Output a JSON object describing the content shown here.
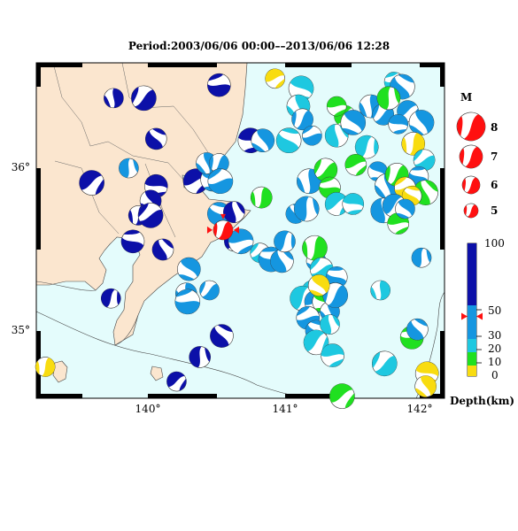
{
  "title": "Period:2003/06/06 00:00––2013/06/06 12:28",
  "axes": {
    "x_ticks": [
      "140°",
      "141°",
      "142°"
    ],
    "y_ticks": [
      "36°",
      "35°"
    ]
  },
  "magnitude_legend": {
    "heading": "M",
    "labels": [
      "8",
      "7",
      "6",
      "5"
    ]
  },
  "depth_legend": {
    "labels": [
      "100",
      "50",
      "30",
      "20",
      "10",
      "0"
    ],
    "caption": "Depth(km)",
    "current_marker_km": 45
  },
  "colors": {
    "land": "#fbe6cf",
    "sea": "#e4fcfc",
    "deep": "#0c10a8",
    "mid": "#1596e0",
    "shallow1": "#1ec8e0",
    "shallow2": "#20e020",
    "surface": "#f8dc10",
    "event": "#ff1010"
  },
  "selected_event": {
    "lon": 140.55,
    "lat": 35.62
  },
  "events": [
    {
      "lon": 139.75,
      "lat": 36.43,
      "d": "deep"
    },
    {
      "lon": 139.97,
      "lat": 36.43,
      "d": "deep"
    },
    {
      "lon": 140.52,
      "lat": 36.51,
      "d": "deep"
    },
    {
      "lon": 140.06,
      "lat": 36.18,
      "d": "deep"
    },
    {
      "lon": 139.86,
      "lat": 36.0,
      "d": "mid"
    },
    {
      "lon": 139.59,
      "lat": 35.91,
      "d": "deep"
    },
    {
      "lon": 140.06,
      "lat": 35.89,
      "d": "deep"
    },
    {
      "lon": 140.02,
      "lat": 35.8,
      "d": "deep"
    },
    {
      "lon": 139.93,
      "lat": 35.71,
      "d": "deep"
    },
    {
      "lon": 140.02,
      "lat": 35.71,
      "d": "deep"
    },
    {
      "lon": 139.89,
      "lat": 35.55,
      "d": "deep"
    },
    {
      "lon": 140.11,
      "lat": 35.5,
      "d": "deep"
    },
    {
      "lon": 139.73,
      "lat": 35.2,
      "d": "deep"
    },
    {
      "lon": 140.35,
      "lat": 35.92,
      "d": "deep"
    },
    {
      "lon": 140.47,
      "lat": 35.93,
      "d": "mid"
    },
    {
      "lon": 140.43,
      "lat": 36.03,
      "d": "mid"
    },
    {
      "lon": 140.52,
      "lat": 36.03,
      "d": "mid"
    },
    {
      "lon": 140.53,
      "lat": 35.92,
      "d": "mid"
    },
    {
      "lon": 140.52,
      "lat": 35.72,
      "d": "mid"
    },
    {
      "lon": 140.63,
      "lat": 35.73,
      "d": "deep"
    },
    {
      "lon": 140.63,
      "lat": 35.55,
      "d": "deep"
    },
    {
      "lon": 140.68,
      "lat": 35.55,
      "d": "mid"
    },
    {
      "lon": 140.3,
      "lat": 35.38,
      "d": "mid"
    },
    {
      "lon": 140.28,
      "lat": 35.23,
      "d": "mid"
    },
    {
      "lon": 140.45,
      "lat": 35.25,
      "d": "mid"
    },
    {
      "lon": 140.29,
      "lat": 35.18,
      "d": "mid"
    },
    {
      "lon": 140.54,
      "lat": 34.97,
      "d": "deep"
    },
    {
      "lon": 140.38,
      "lat": 34.84,
      "d": "deep"
    },
    {
      "lon": 140.21,
      "lat": 34.69,
      "d": "deep"
    },
    {
      "lon": 140.75,
      "lat": 36.17,
      "d": "deep"
    },
    {
      "lon": 140.84,
      "lat": 36.17,
      "d": "mid"
    },
    {
      "lon": 140.83,
      "lat": 35.82,
      "d": "shallow2"
    },
    {
      "lon": 140.82,
      "lat": 35.48,
      "d": "shallow1"
    },
    {
      "lon": 140.9,
      "lat": 35.44,
      "d": "mid"
    },
    {
      "lon": 140.98,
      "lat": 35.43,
      "d": "mid"
    },
    {
      "lon": 141.0,
      "lat": 35.55,
      "d": "mid"
    },
    {
      "lon": 140.93,
      "lat": 36.55,
      "d": "surface"
    },
    {
      "lon": 141.12,
      "lat": 36.49,
      "d": "shallow1"
    },
    {
      "lon": 141.1,
      "lat": 36.38,
      "d": "shallow1"
    },
    {
      "lon": 141.13,
      "lat": 36.3,
      "d": "mid"
    },
    {
      "lon": 141.2,
      "lat": 36.2,
      "d": "mid"
    },
    {
      "lon": 141.03,
      "lat": 36.17,
      "d": "shallow1"
    },
    {
      "lon": 141.38,
      "lat": 36.2,
      "d": "shallow1"
    },
    {
      "lon": 141.44,
      "lat": 36.32,
      "d": "shallow2"
    },
    {
      "lon": 141.38,
      "lat": 36.38,
      "d": "shallow2"
    },
    {
      "lon": 141.5,
      "lat": 36.28,
      "d": "mid"
    },
    {
      "lon": 141.63,
      "lat": 36.38,
      "d": "mid"
    },
    {
      "lon": 141.72,
      "lat": 36.33,
      "d": "mid"
    },
    {
      "lon": 141.8,
      "lat": 36.53,
      "d": "shallow1"
    },
    {
      "lon": 141.86,
      "lat": 36.5,
      "d": "mid"
    },
    {
      "lon": 141.76,
      "lat": 36.43,
      "d": "shallow2"
    },
    {
      "lon": 141.9,
      "lat": 36.35,
      "d": "mid"
    },
    {
      "lon": 141.83,
      "lat": 36.27,
      "d": "mid"
    },
    {
      "lon": 142.0,
      "lat": 36.28,
      "d": "mid"
    },
    {
      "lon": 141.94,
      "lat": 36.15,
      "d": "surface"
    },
    {
      "lon": 142.02,
      "lat": 36.05,
      "d": "shallow1"
    },
    {
      "lon": 141.98,
      "lat": 35.95,
      "d": "mid"
    },
    {
      "lon": 142.03,
      "lat": 35.85,
      "d": "shallow2"
    },
    {
      "lon": 141.6,
      "lat": 36.13,
      "d": "shallow1"
    },
    {
      "lon": 141.52,
      "lat": 36.02,
      "d": "shallow2"
    },
    {
      "lon": 141.68,
      "lat": 35.98,
      "d": "mid"
    },
    {
      "lon": 141.75,
      "lat": 35.89,
      "d": "mid"
    },
    {
      "lon": 141.82,
      "lat": 35.96,
      "d": "shallow2"
    },
    {
      "lon": 141.88,
      "lat": 35.88,
      "d": "surface"
    },
    {
      "lon": 141.93,
      "lat": 35.83,
      "d": "surface"
    },
    {
      "lon": 141.72,
      "lat": 35.74,
      "d": "mid"
    },
    {
      "lon": 141.8,
      "lat": 35.77,
      "d": "mid"
    },
    {
      "lon": 141.83,
      "lat": 35.66,
      "d": "shallow2"
    },
    {
      "lon": 141.88,
      "lat": 35.75,
      "d": "mid"
    },
    {
      "lon": 141.18,
      "lat": 35.92,
      "d": "mid"
    },
    {
      "lon": 141.3,
      "lat": 35.99,
      "d": "shallow2"
    },
    {
      "lon": 141.33,
      "lat": 35.88,
      "d": "shallow2"
    },
    {
      "lon": 141.08,
      "lat": 35.72,
      "d": "mid"
    },
    {
      "lon": 141.16,
      "lat": 35.75,
      "d": "mid"
    },
    {
      "lon": 141.38,
      "lat": 35.78,
      "d": "shallow1"
    },
    {
      "lon": 141.5,
      "lat": 35.78,
      "d": "shallow1"
    },
    {
      "lon": 141.23,
      "lat": 35.43,
      "d": "mid"
    },
    {
      "lon": 141.22,
      "lat": 35.51,
      "d": "shallow2"
    },
    {
      "lon": 141.27,
      "lat": 35.38,
      "d": "shallow1"
    },
    {
      "lon": 141.38,
      "lat": 35.33,
      "d": "mid"
    },
    {
      "lon": 141.2,
      "lat": 35.25,
      "d": "shallow1"
    },
    {
      "lon": 141.13,
      "lat": 35.2,
      "d": "shallow1"
    },
    {
      "lon": 141.23,
      "lat": 35.18,
      "d": "mid"
    },
    {
      "lon": 141.28,
      "lat": 35.18,
      "d": "shallow2"
    },
    {
      "lon": 141.33,
      "lat": 35.12,
      "d": "mid"
    },
    {
      "lon": 141.37,
      "lat": 35.22,
      "d": "mid"
    },
    {
      "lon": 141.17,
      "lat": 35.08,
      "d": "mid"
    },
    {
      "lon": 141.23,
      "lat": 35.0,
      "d": "mid"
    },
    {
      "lon": 141.33,
      "lat": 35.04,
      "d": "shallow1"
    },
    {
      "lon": 141.23,
      "lat": 34.93,
      "d": "shallow1"
    },
    {
      "lon": 141.35,
      "lat": 34.85,
      "d": "shallow1"
    },
    {
      "lon": 141.25,
      "lat": 35.28,
      "d": "surface"
    },
    {
      "lon": 141.7,
      "lat": 35.25,
      "d": "shallow1"
    },
    {
      "lon": 141.73,
      "lat": 34.8,
      "d": "shallow1"
    },
    {
      "lon": 141.93,
      "lat": 34.96,
      "d": "shallow2"
    },
    {
      "lon": 141.97,
      "lat": 35.01,
      "d": "mid"
    },
    {
      "lon": 142.0,
      "lat": 35.45,
      "d": "mid"
    },
    {
      "lon": 141.42,
      "lat": 34.6,
      "d": "shallow2"
    },
    {
      "lon": 142.04,
      "lat": 34.74,
      "d": "surface"
    },
    {
      "lon": 142.03,
      "lat": 34.66,
      "d": "surface"
    },
    {
      "lon": 139.25,
      "lat": 34.78,
      "d": "surface"
    }
  ]
}
